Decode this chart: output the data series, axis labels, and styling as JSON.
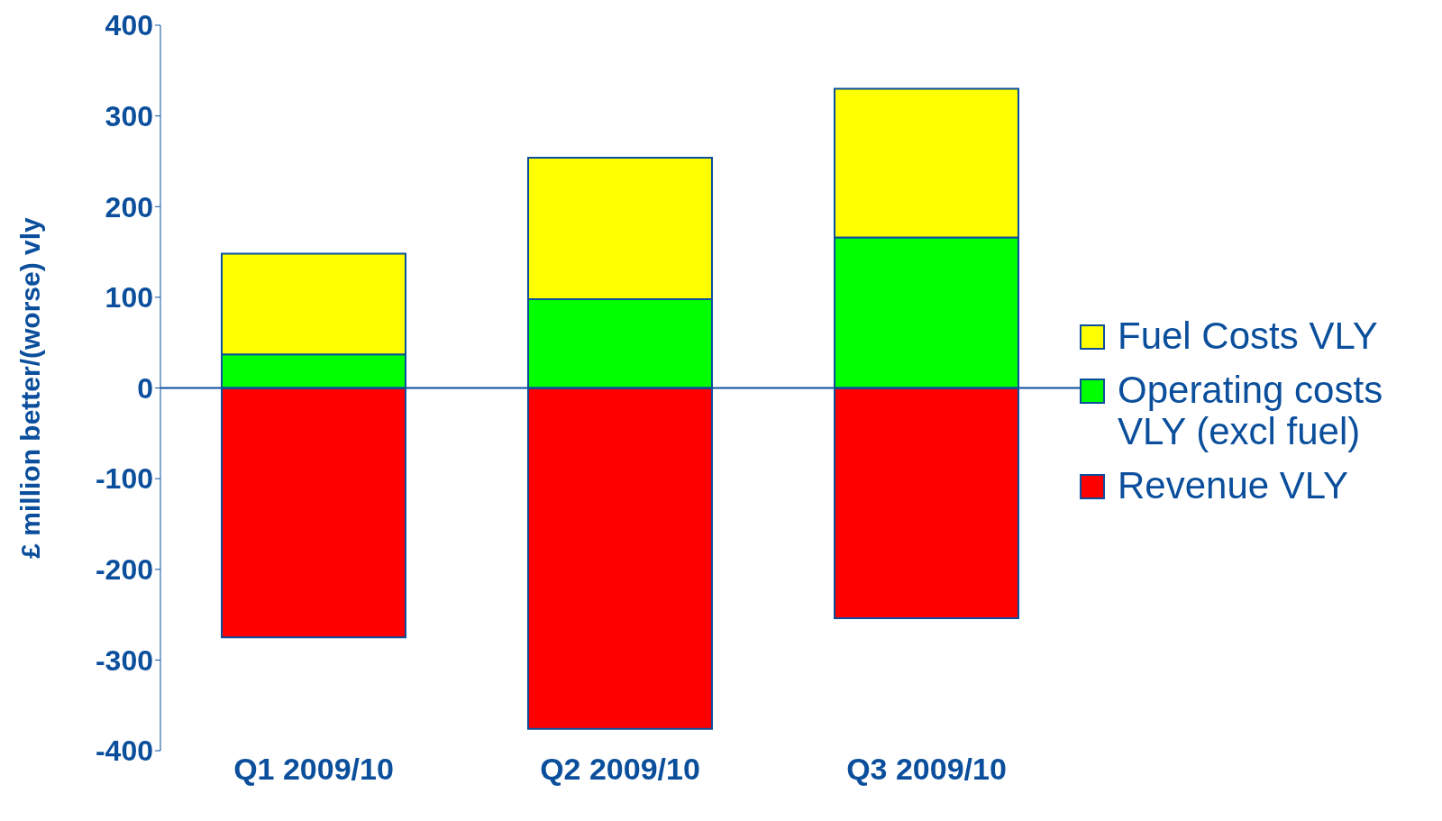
{
  "chart_data": {
    "type": "bar",
    "stacked": true,
    "ylabel": "£ million better/(worse) vly",
    "categories": [
      "Q1 2009/10",
      "Q2 2009/10",
      "Q3 2009/10"
    ],
    "series": [
      {
        "name": "Revenue VLY",
        "color": "#ff0000",
        "values": [
          -275,
          -376,
          -254
        ]
      },
      {
        "name": "Operating costs VLY (excl fuel)",
        "color": "#00ff00",
        "values": [
          37,
          98,
          166
        ]
      },
      {
        "name": "Fuel Costs VLY",
        "color": "#ffff00",
        "values": [
          111,
          156,
          164
        ]
      }
    ],
    "ylim": [
      -400,
      400
    ],
    "yticks": [
      -400,
      -300,
      -200,
      -100,
      0,
      100,
      200,
      300,
      400
    ],
    "ref_lines": [
      {
        "axis": "y",
        "value": 0,
        "color": "#0b4f9c"
      }
    ],
    "grid": false,
    "legend": "right"
  }
}
